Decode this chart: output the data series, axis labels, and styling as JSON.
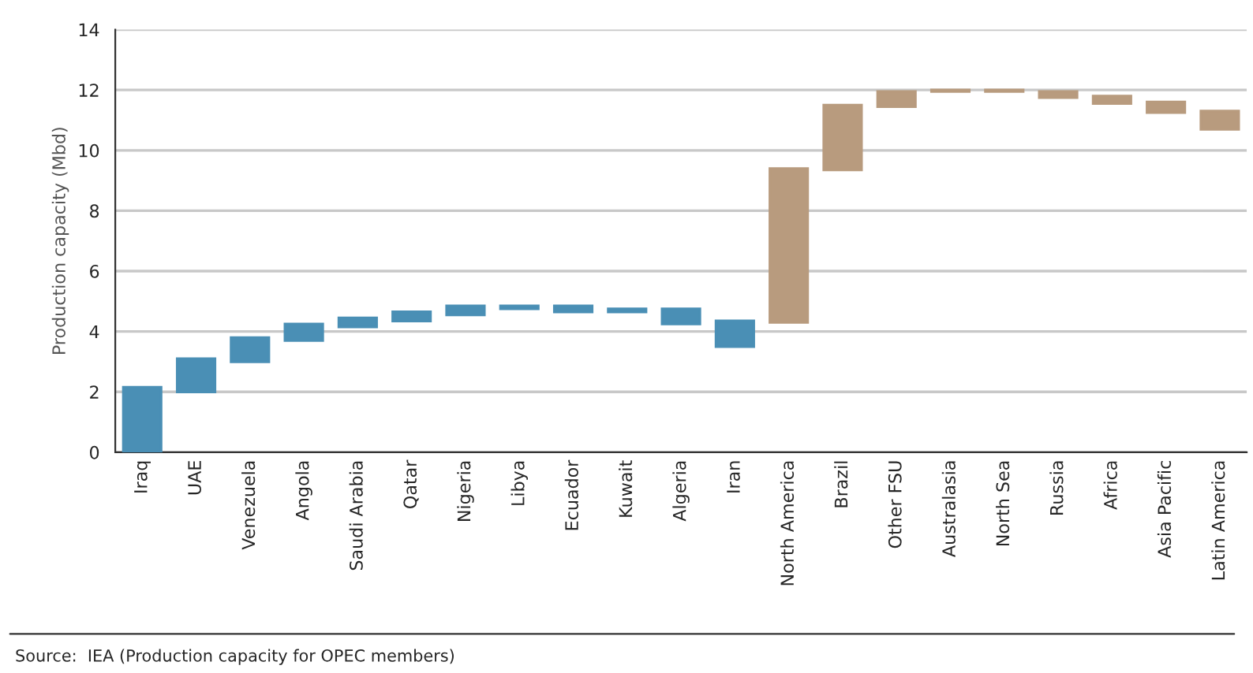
{
  "chart_data": {
    "type": "bar",
    "ylabel": "Production capacity (Mbd)",
    "categories": [
      "Iraq",
      "UAE",
      "Venezuela",
      "Angola",
      "Saudi Arabia",
      "Qatar",
      "Nigeria",
      "Libya",
      "Ecuador",
      "Kuwait",
      "Algeria",
      "Iran",
      "North America",
      "Brazil",
      "Other FSU",
      "Australasia",
      "North Sea",
      "Russia",
      "Africa",
      "Asia Pacific",
      "Latin America"
    ],
    "base": [
      0,
      2.0,
      3.0,
      3.7,
      4.15,
      4.35,
      4.55,
      4.75,
      4.65,
      4.65,
      4.25,
      3.5,
      4.3,
      9.35,
      11.45,
      11.95,
      11.95,
      11.75,
      11.55,
      11.25,
      10.7
    ],
    "values": [
      2.15,
      1.1,
      0.8,
      0.55,
      0.3,
      0.3,
      0.3,
      0.1,
      0.2,
      0.1,
      0.5,
      0.85,
      5.1,
      2.15,
      0.5,
      0.05,
      0.05,
      0.2,
      0.25,
      0.35,
      0.6
    ],
    "colors": [
      "#4a8fb5",
      "#4a8fb5",
      "#4a8fb5",
      "#4a8fb5",
      "#4a8fb5",
      "#4a8fb5",
      "#4a8fb5",
      "#4a8fb5",
      "#4a8fb5",
      "#4a8fb5",
      "#4a8fb5",
      "#4a8fb5",
      "#b89b7e",
      "#b89b7e",
      "#b89b7e",
      "#b89b7e",
      "#b89b7e",
      "#b89b7e",
      "#b89b7e",
      "#b89b7e",
      "#b89b7e"
    ],
    "ylim": [
      0,
      14
    ],
    "yticks": [
      0,
      2,
      4,
      6,
      8,
      10,
      12,
      14
    ],
    "grid": "y",
    "annotations": [
      "Source:  IEA (Production capacity for OPEC members)"
    ]
  }
}
